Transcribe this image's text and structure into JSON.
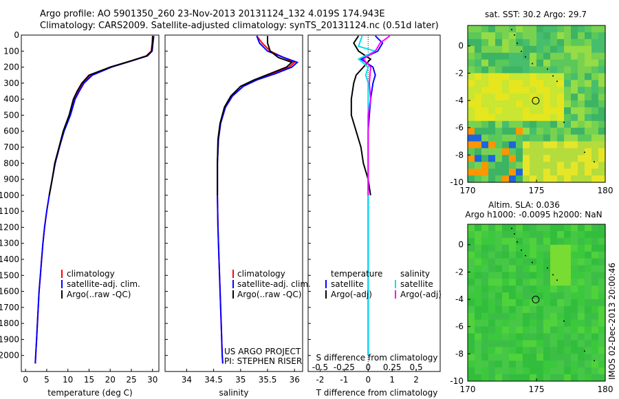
{
  "header": {
    "line1": "Argo profile: AO 5901350_260 23-Nov-2013 20131124_132 4.019S 174.943E",
    "line2": "Climatology: CARS2009. Satellite-adjusted climatology: synTS_20131124.nc (0.51d later)"
  },
  "colors": {
    "clim": "#ff0000",
    "sat": "#0000ff",
    "argo": "#000000",
    "sat_s": "#00e0f0",
    "argo_s": "#ff00ff"
  },
  "chart_data": [
    {
      "type": "line",
      "name": "temperature-profile",
      "xlabel": "temperature (deg C)",
      "xlim": [
        -1,
        31.5
      ],
      "xticks": [
        0,
        5,
        10,
        15,
        20,
        25,
        30
      ],
      "ylim": [
        2100,
        0
      ],
      "yticks": [
        0,
        100,
        200,
        300,
        400,
        500,
        600,
        700,
        800,
        900,
        1000,
        1100,
        1200,
        1300,
        1400,
        1500,
        1600,
        1700,
        1800,
        1900,
        2000
      ],
      "legend": [
        "climatology",
        "satellite-adj. clim.",
        "Argo(..raw -QC)"
      ],
      "series": [
        {
          "name": "climatology",
          "color": "#ff0000",
          "points": [
            [
              30.0,
              5
            ],
            [
              29.9,
              50
            ],
            [
              29.7,
              100
            ],
            [
              28.5,
              130
            ],
            [
              25,
              160
            ],
            [
              20,
              200
            ],
            [
              15.5,
              250
            ],
            [
              13.5,
              300
            ],
            [
              12.5,
              350
            ],
            [
              11.5,
              400
            ],
            [
              10.5,
              500
            ],
            [
              9.0,
              600
            ],
            [
              8.0,
              700
            ],
            [
              7.0,
              800
            ],
            [
              6.3,
              900
            ],
            [
              5.6,
              1000
            ],
            [
              5.0,
              1100
            ],
            [
              4.5,
              1200
            ],
            [
              4.1,
              1300
            ],
            [
              3.8,
              1400
            ],
            [
              3.5,
              1500
            ],
            [
              3.2,
              1600
            ],
            [
              3.0,
              1700
            ],
            [
              2.8,
              1800
            ],
            [
              2.6,
              1900
            ],
            [
              2.4,
              2000
            ],
            [
              2.3,
              2050
            ]
          ]
        },
        {
          "name": "satellite-adj",
          "color": "#0000ff",
          "points": [
            [
              30.3,
              5
            ],
            [
              30.1,
              50
            ],
            [
              29.9,
              100
            ],
            [
              28.8,
              130
            ],
            [
              25.2,
              160
            ],
            [
              20.3,
              200
            ],
            [
              15.8,
              250
            ],
            [
              13.8,
              300
            ],
            [
              12.7,
              350
            ],
            [
              11.7,
              400
            ],
            [
              10.6,
              500
            ],
            [
              9.1,
              600
            ],
            [
              8.0,
              700
            ],
            [
              7.0,
              800
            ],
            [
              6.3,
              900
            ],
            [
              5.6,
              1000
            ],
            [
              5.0,
              1100
            ],
            [
              4.5,
              1200
            ],
            [
              4.1,
              1300
            ],
            [
              3.8,
              1400
            ],
            [
              3.5,
              1500
            ],
            [
              3.2,
              1600
            ],
            [
              3.0,
              1700
            ],
            [
              2.8,
              1800
            ],
            [
              2.6,
              1900
            ],
            [
              2.4,
              2000
            ],
            [
              2.3,
              2050
            ]
          ]
        },
        {
          "name": "argo",
          "color": "#000000",
          "points": [
            [
              30.1,
              5
            ],
            [
              30.0,
              50
            ],
            [
              29.8,
              100
            ],
            [
              28.6,
              130
            ],
            [
              25.0,
              160
            ],
            [
              20.0,
              200
            ],
            [
              15.0,
              250
            ],
            [
              13.3,
              300
            ],
            [
              12.2,
              350
            ],
            [
              11.3,
              400
            ],
            [
              10.3,
              500
            ],
            [
              8.9,
              600
            ],
            [
              7.9,
              700
            ],
            [
              6.9,
              800
            ],
            [
              6.3,
              900
            ],
            [
              5.6,
              1000
            ]
          ]
        }
      ]
    },
    {
      "type": "line",
      "name": "salinity-profile",
      "xlabel": "salinity",
      "xlim": [
        33.6,
        36.15
      ],
      "xticks": [
        34,
        34.5,
        35,
        35.5,
        36
      ],
      "ylim": [
        2100,
        0
      ],
      "legend": [
        "climatology",
        "satellite-adj. clim.",
        "Argo(..raw -QC)"
      ],
      "annotation": [
        "US ARGO PROJECT",
        "PI: STEPHEN RISER"
      ],
      "series": [
        {
          "name": "climatology",
          "color": "#ff0000",
          "points": [
            [
              35.3,
              5
            ],
            [
              35.4,
              50
            ],
            [
              35.55,
              100
            ],
            [
              35.8,
              140
            ],
            [
              36.0,
              170
            ],
            [
              35.9,
              200
            ],
            [
              35.6,
              240
            ],
            [
              35.3,
              280
            ],
            [
              35.05,
              320
            ],
            [
              34.85,
              380
            ],
            [
              34.72,
              450
            ],
            [
              34.63,
              550
            ],
            [
              34.59,
              650
            ],
            [
              34.57,
              800
            ],
            [
              34.57,
              1000
            ],
            [
              34.58,
              1200
            ],
            [
              34.6,
              1400
            ],
            [
              34.62,
              1600
            ],
            [
              34.64,
              1800
            ],
            [
              34.66,
              2000
            ],
            [
              34.67,
              2050
            ]
          ]
        },
        {
          "name": "satellite-adj",
          "color": "#0000ff",
          "points": [
            [
              35.3,
              5
            ],
            [
              35.35,
              50
            ],
            [
              35.5,
              100
            ],
            [
              35.8,
              140
            ],
            [
              36.05,
              170
            ],
            [
              35.95,
              200
            ],
            [
              35.65,
              240
            ],
            [
              35.3,
              280
            ],
            [
              35.05,
              320
            ],
            [
              34.85,
              380
            ],
            [
              34.72,
              450
            ],
            [
              34.63,
              550
            ],
            [
              34.59,
              650
            ],
            [
              34.57,
              800
            ],
            [
              34.57,
              1000
            ],
            [
              34.58,
              1200
            ],
            [
              34.6,
              1400
            ],
            [
              34.62,
              1600
            ],
            [
              34.64,
              1800
            ],
            [
              34.66,
              2000
            ],
            [
              34.67,
              2050
            ]
          ]
        },
        {
          "name": "argo",
          "color": "#000000",
          "points": [
            [
              35.5,
              5
            ],
            [
              35.5,
              50
            ],
            [
              35.55,
              100
            ],
            [
              35.7,
              140
            ],
            [
              35.95,
              170
            ],
            [
              35.85,
              200
            ],
            [
              35.55,
              240
            ],
            [
              35.25,
              280
            ],
            [
              35.0,
              320
            ],
            [
              34.82,
              380
            ],
            [
              34.7,
              450
            ],
            [
              34.62,
              550
            ],
            [
              34.58,
              650
            ],
            [
              34.57,
              800
            ],
            [
              34.57,
              1000
            ]
          ]
        }
      ]
    },
    {
      "type": "line",
      "name": "difference-profile",
      "xlabel_top": "S difference from climatology",
      "xlabel": "T difference from climatology",
      "xlim": [
        -2.5,
        3.0
      ],
      "xticks": [
        -2,
        -1,
        0,
        1,
        2
      ],
      "xticks_top": [
        "-0.5",
        "-0.25",
        "0",
        "0.25",
        "0.5"
      ],
      "ylim": [
        2100,
        0
      ],
      "legend_titles": [
        "temperature",
        "salinity"
      ],
      "legend": [
        "satellite",
        "Argo(-adj)",
        "satellite",
        "Argo(-adj)"
      ],
      "series": [
        {
          "name": "T satellite",
          "color": "#0000ff",
          "points": [
            [
              0.3,
              5
            ],
            [
              0.6,
              50
            ],
            [
              0.4,
              100
            ],
            [
              -0.3,
              150
            ],
            [
              0.2,
              200
            ],
            [
              0.3,
              250
            ],
            [
              0.2,
              300
            ],
            [
              0.1,
              400
            ],
            [
              0.05,
              500
            ],
            [
              0.0,
              600
            ],
            [
              0.0,
              800
            ],
            [
              0.0,
              1000
            ],
            [
              0.0,
              1200
            ],
            [
              0.0,
              1400
            ],
            [
              0.0,
              1600
            ],
            [
              0.0,
              1800
            ],
            [
              0.0,
              2000
            ]
          ]
        },
        {
          "name": "T argo",
          "color": "#000000",
          "points": [
            [
              -0.4,
              5
            ],
            [
              -0.6,
              50
            ],
            [
              -0.4,
              100
            ],
            [
              0.1,
              150
            ],
            [
              -0.5,
              250
            ],
            [
              -0.6,
              300
            ],
            [
              -0.7,
              400
            ],
            [
              -0.7,
              500
            ],
            [
              -0.5,
              600
            ],
            [
              -0.3,
              700
            ],
            [
              -0.2,
              800
            ],
            [
              0.0,
              900
            ],
            [
              0.1,
              1000
            ]
          ]
        },
        {
          "name": "S satellite",
          "color": "#00e0f0",
          "points": [
            [
              -0.25,
              5
            ],
            [
              -0.4,
              70
            ],
            [
              0.3,
              100
            ],
            [
              -0.4,
              150
            ],
            [
              0.0,
              200
            ],
            [
              -0.1,
              250
            ],
            [
              0.0,
              300
            ],
            [
              0.0,
              500
            ],
            [
              0.0,
              1000
            ],
            [
              0.0,
              1500
            ],
            [
              0.0,
              2000
            ]
          ]
        },
        {
          "name": "S argo",
          "color": "#ff00ff",
          "points": [
            [
              0.9,
              5
            ],
            [
              0.5,
              50
            ],
            [
              0.3,
              100
            ],
            [
              -0.2,
              150
            ],
            [
              0.1,
              200
            ],
            [
              0.05,
              300
            ],
            [
              0.1,
              400
            ],
            [
              0.0,
              500
            ],
            [
              0.0,
              700
            ],
            [
              0.0,
              900
            ],
            [
              0.0,
              1000
            ]
          ]
        }
      ]
    },
    {
      "type": "heatmap",
      "name": "sst-map",
      "title": "sat. SST: 30.2  Argo: 29.7",
      "xticks": [
        170,
        175,
        180
      ],
      "yticks": [
        0,
        -2,
        -4,
        -6,
        -8,
        -10
      ],
      "xlim": [
        170,
        180
      ],
      "ylim": [
        -10,
        1.5
      ],
      "float_position": [
        174.943,
        -4.019
      ]
    },
    {
      "type": "heatmap",
      "name": "sla-map",
      "title1": "Altim. SLA: 0.036",
      "title2": "Argo h1000: -0.0095 h2000: NaN",
      "xticks": [
        170,
        175,
        180
      ],
      "yticks": [
        0,
        -2,
        -4,
        -6,
        -8,
        -10
      ],
      "xlim": [
        170,
        180
      ],
      "ylim": [
        -10,
        1.5
      ],
      "float_position": [
        174.943,
        -4.019
      ]
    }
  ],
  "footer": {
    "stamp": "IMOS 02-Dec-2013 20:00:46"
  }
}
